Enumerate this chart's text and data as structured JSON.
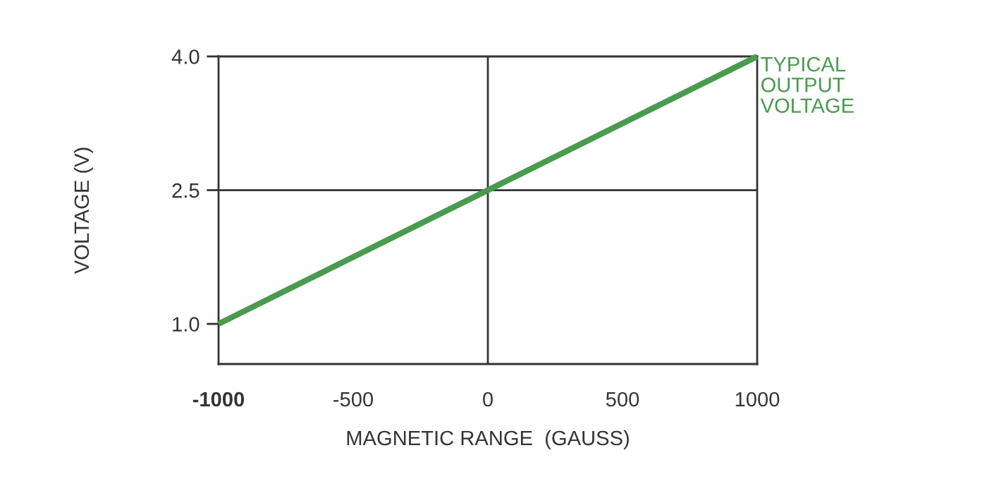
{
  "chart_data": {
    "type": "line",
    "xlabel": "MAGNETIC RANGE  (GAUSS)",
    "ylabel": "VOLTAGE (V)",
    "x": [
      -1000,
      1000
    ],
    "series": [
      {
        "name": "TYPICAL\nOUTPUT\nVOLTAGE",
        "color": "#4a9a4f",
        "values": [
          1.0,
          4.0
        ]
      }
    ],
    "xlim": [
      -1000,
      1000
    ],
    "ylim": [
      0.55,
      4.0
    ],
    "xticks": [
      -1000,
      -500,
      0,
      500,
      1000
    ],
    "yticks": [
      {
        "value": 1.0,
        "label": "1.0"
      },
      {
        "value": 2.5,
        "label": "2.5"
      },
      {
        "value": 4.0,
        "label": "4.0"
      }
    ],
    "ref_lines": [
      {
        "axis": "x",
        "value": 0,
        "color": "#333333"
      },
      {
        "axis": "y",
        "value": 2.5,
        "color": "#333333"
      }
    ],
    "grid": false,
    "legend": false,
    "marker": "none",
    "line_style": "solid"
  }
}
